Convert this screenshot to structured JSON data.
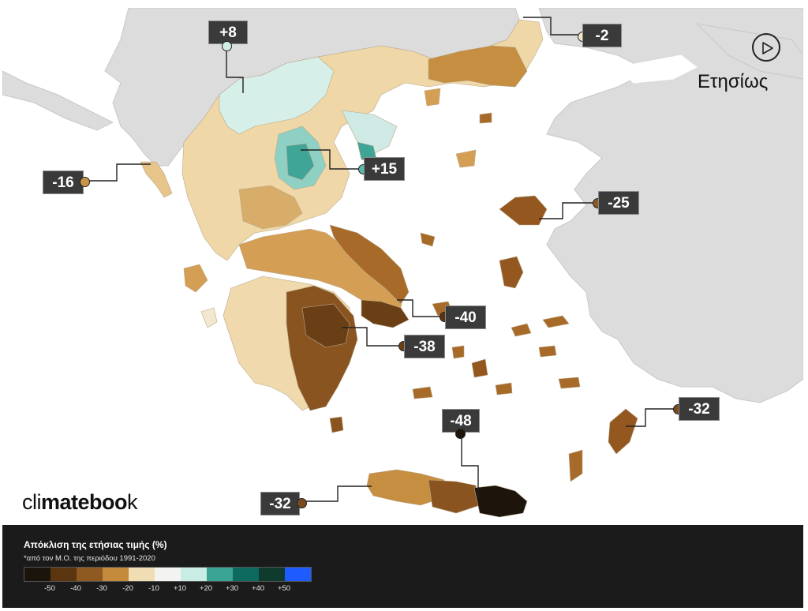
{
  "map": {
    "title": "Ετησίως",
    "brand": {
      "prefix": "cli",
      "bold1": "mate",
      "mid": "boo",
      "bold2": "",
      "suffix": "k"
    },
    "callouts": [
      {
        "id": "north-west",
        "label": "+8",
        "dot_color": "#cfeee7"
      },
      {
        "id": "north-east",
        "label": "-2",
        "dot_color": "#f3e6c2"
      },
      {
        "id": "corfu",
        "label": "-16",
        "dot_color": "#c89548"
      },
      {
        "id": "thessaly",
        "label": "+15",
        "dot_color": "#5cb8ad"
      },
      {
        "id": "lesvos",
        "label": "-25",
        "dot_color": "#8a5a26"
      },
      {
        "id": "attica",
        "label": "-40",
        "dot_color": "#5a3412"
      },
      {
        "id": "argolida",
        "label": "-38",
        "dot_color": "#6b3f16"
      },
      {
        "id": "dodecanese",
        "label": "-32",
        "dot_color": "#7a4a1c"
      },
      {
        "id": "crete-east",
        "label": "-48",
        "dot_color": "#1d140b"
      },
      {
        "id": "crete-west",
        "label": "-32",
        "dot_color": "#7a4a1c"
      }
    ]
  },
  "legend": {
    "title": "Απόκλιση της ετήσιας τιμής (%)",
    "subtitle": "*από τον Μ.Ο. της περιόδου 1991-2020",
    "colors": [
      "#1a140c",
      "#5b3510",
      "#8e5a22",
      "#c48b3d",
      "#f0ddb4",
      "#f3f3f1",
      "#c9ece5",
      "#3aa393",
      "#0e6a5e",
      "#0f3b2e",
      "#1f5cff"
    ],
    "ticks": [
      "-50",
      "-40",
      "-30",
      "-20",
      "-10",
      "+10",
      "+20",
      "+30",
      "+40",
      "+50"
    ]
  }
}
